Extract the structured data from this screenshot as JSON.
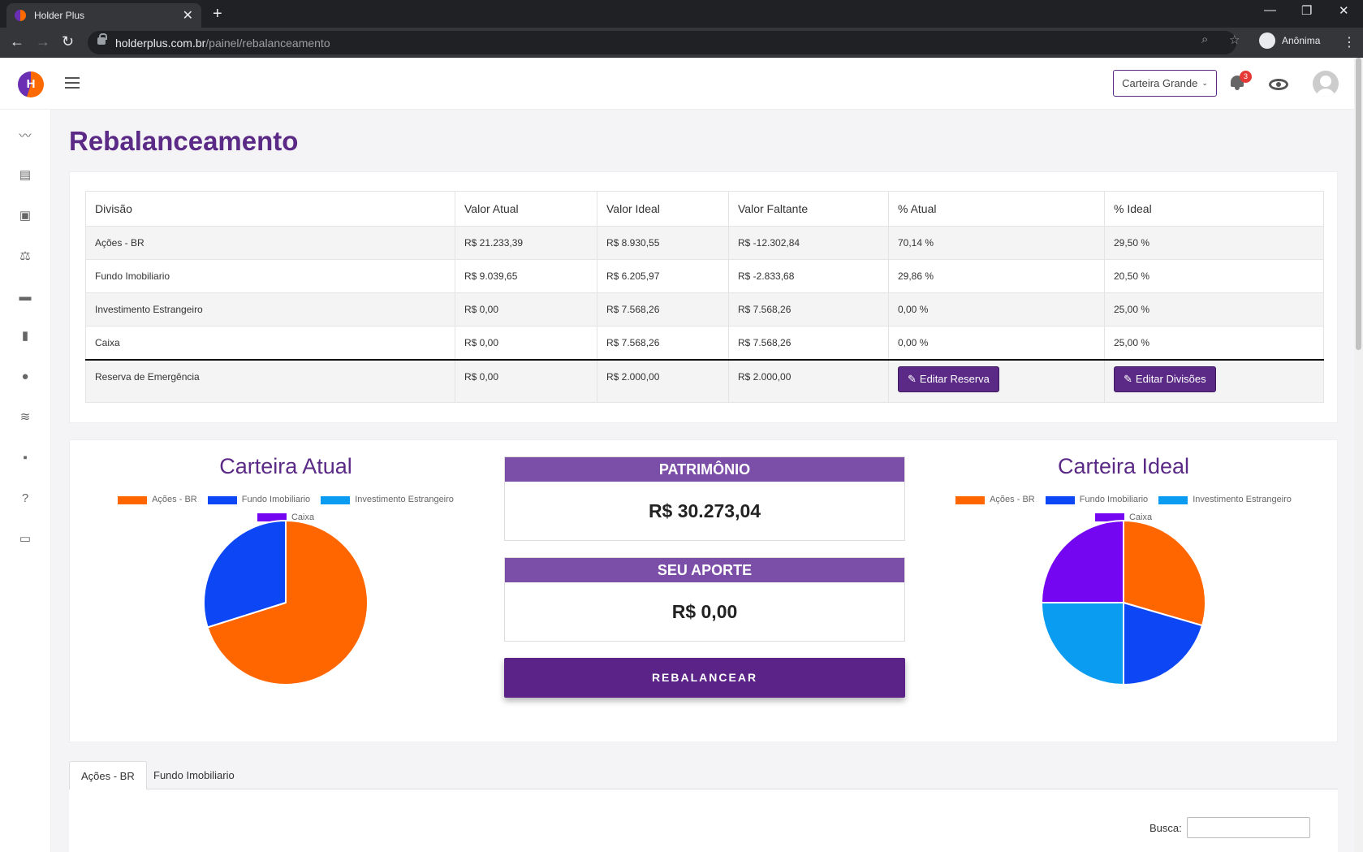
{
  "browser": {
    "tab_title": "Holder Plus",
    "url_host": "holderplus.com.br",
    "url_path": "/painel/rebalanceamento",
    "profile_label": "Anônima"
  },
  "header": {
    "wallet_selector": "Carteira Grande",
    "notification_count": "3"
  },
  "page": {
    "title": "Rebalanceamento"
  },
  "table": {
    "headers": [
      "Divisão",
      "Valor Atual",
      "Valor Ideal",
      "Valor Faltante",
      "% Atual",
      "% Ideal"
    ],
    "rows": [
      {
        "divisao": "Ações - BR",
        "atual": "R$ 21.233,39",
        "ideal": "R$ 8.930,55",
        "faltante": "R$ -12.302,84",
        "pct_atual": "70,14 %",
        "pct_ideal": "29,50 %"
      },
      {
        "divisao": "Fundo Imobiliario",
        "atual": "R$ 9.039,65",
        "ideal": "R$ 6.205,97",
        "faltante": "R$ -2.833,68",
        "pct_atual": "29,86 %",
        "pct_ideal": "20,50 %"
      },
      {
        "divisao": "Investimento Estrangeiro",
        "atual": "R$ 0,00",
        "ideal": "R$ 7.568,26",
        "faltante": "R$ 7.568,26",
        "pct_atual": "0,00 %",
        "pct_ideal": "25,00 %"
      },
      {
        "divisao": "Caixa",
        "atual": "R$ 0,00",
        "ideal": "R$ 7.568,26",
        "faltante": "R$ 7.568,26",
        "pct_atual": "0,00 %",
        "pct_ideal": "25,00 %"
      }
    ],
    "reserva": {
      "divisao": "Reserva de Emergência",
      "atual": "R$ 0,00",
      "ideal": "R$ 2.000,00",
      "faltante": "R$ 2.000,00"
    },
    "edit_reserva_label": "Editar Reserva",
    "edit_divisoes_label": "Editar Divisões"
  },
  "summary": {
    "patrimonio_label": "PATRIMÔNIO",
    "patrimonio_value": "R$ 30.273,04",
    "aporte_label": "SEU APORTE",
    "aporte_value": "R$ 0,00",
    "rebalancear_label": "REBALANCEAR"
  },
  "colors": {
    "acoes": "#ff6600",
    "fii": "#0d47f5",
    "estrangeiro": "#0a9cf0",
    "caixa": "#7506f2"
  },
  "chart_data": [
    {
      "type": "pie",
      "title": "Carteira Atual",
      "legend": [
        "Ações - BR",
        "Fundo Imobiliario",
        "Investimento Estrangeiro",
        "Caixa"
      ],
      "values": [
        70.14,
        29.86,
        0,
        0
      ]
    },
    {
      "type": "pie",
      "title": "Carteira Ideal",
      "legend": [
        "Ações - BR",
        "Fundo Imobiliario",
        "Investimento Estrangeiro",
        "Caixa"
      ],
      "values": [
        29.5,
        20.5,
        25,
        25
      ]
    }
  ],
  "tabs": [
    "Ações - BR",
    "Fundo Imobiliario"
  ],
  "search": {
    "label": "Busca:"
  }
}
